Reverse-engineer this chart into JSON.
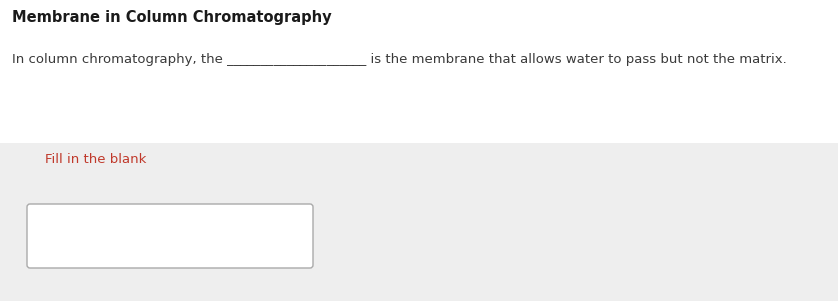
{
  "title": "Membrane in Column Chromatography",
  "title_color": "#1a1a1a",
  "title_fontsize": 10.5,
  "sentence_text": "In column chromatography, the _____________________ is the membrane that allows water to pass but not the matrix.",
  "sentence_color": "#3a3a3a",
  "sentence_fontsize": 9.5,
  "fill_label": "Fill in the blank",
  "fill_label_color": "#c0392b",
  "fill_label_fontsize": 9.5,
  "background_color": "#ffffff",
  "gray_box_color": "#eeeeee",
  "input_box_color": "#ffffff",
  "input_box_border": "#aaaaaa"
}
